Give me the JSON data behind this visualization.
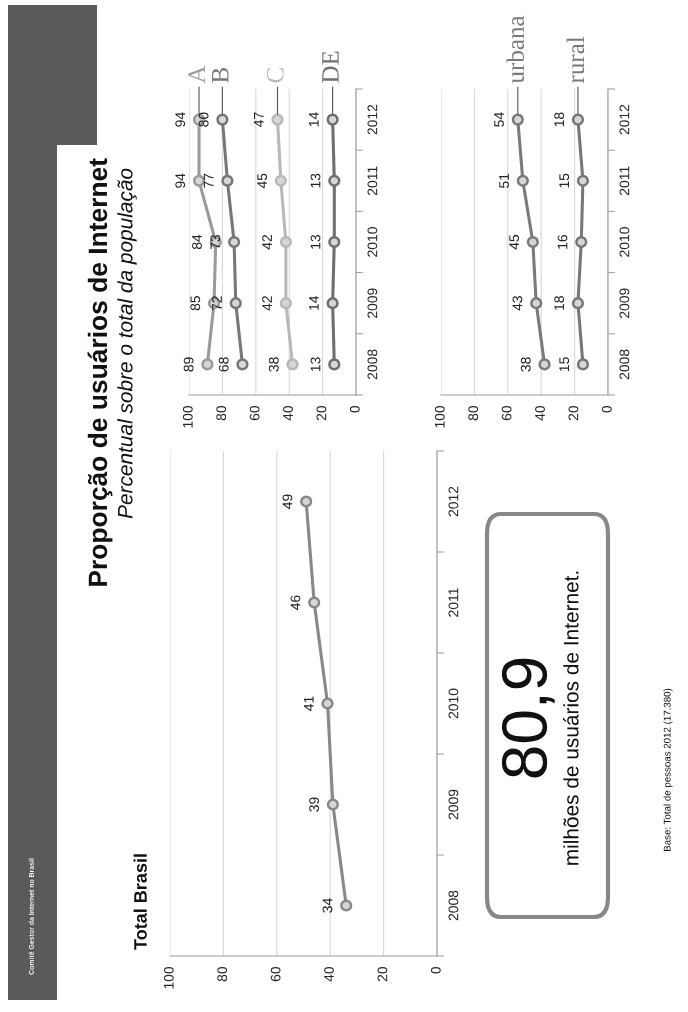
{
  "chart_data": [
    {
      "type": "other",
      "title": "Proporção de usuários de Internet",
      "subtitle": "Percentual sobre o total da população",
      "annotations": [
        "Comitê Gestor da Internet no Brasil"
      ]
    },
    {
      "type": "line",
      "orientation": "horizontal",
      "title": "Total Brasil",
      "categories": [
        "2012",
        "2011",
        "2010",
        "2009",
        "2008"
      ],
      "xlim": [
        100,
        0
      ],
      "xticks": [
        0,
        20,
        40,
        60,
        80,
        100
      ],
      "grid": "x",
      "marker": "circle",
      "data_labels": true,
      "series": [
        {
          "color": "#888888",
          "values": [
            49,
            46,
            41,
            39,
            34
          ]
        }
      ],
      "annotations": [
        "80,9",
        "milhões de usuários de Internet.",
        "Base: Total de pessoas 2012 (17.380)"
      ]
    },
    {
      "type": "line",
      "orientation": "horizontal",
      "categories": [
        "2012",
        "2011",
        "2010",
        "2009",
        "2008"
      ],
      "xlim": [
        100,
        0
      ],
      "xticks": [
        0,
        20,
        40,
        60,
        80,
        100
      ],
      "grid": "x",
      "marker": "circle",
      "data_labels": true,
      "series": [
        {
          "name": "A",
          "color": "#9a9a9a",
          "values": [
            94,
            94,
            84,
            85,
            89
          ]
        },
        {
          "name": "B",
          "color": "#777777",
          "values": [
            80,
            77,
            73,
            72,
            68
          ]
        },
        {
          "name": "C",
          "color": "#b8b8b8",
          "values": [
            47,
            45,
            42,
            42,
            38
          ]
        },
        {
          "name": "DE",
          "color": "#6e6e6e",
          "values": [
            14,
            13,
            13,
            14,
            13
          ]
        }
      ]
    },
    {
      "type": "line",
      "orientation": "horizontal",
      "categories": [
        "2012",
        "2011",
        "2010",
        "2009",
        "2008"
      ],
      "xlim": [
        100,
        0
      ],
      "xticks": [
        0,
        20,
        40,
        60,
        80,
        100
      ],
      "grid": "x",
      "marker": "circle",
      "data_labels": true,
      "series": [
        {
          "name": "urbana",
          "color": "#7a7a7a",
          "values": [
            54,
            51,
            45,
            43,
            38
          ]
        },
        {
          "name": "rural",
          "color": "#777777",
          "values": [
            18,
            15,
            16,
            18,
            15
          ]
        }
      ]
    }
  ]
}
